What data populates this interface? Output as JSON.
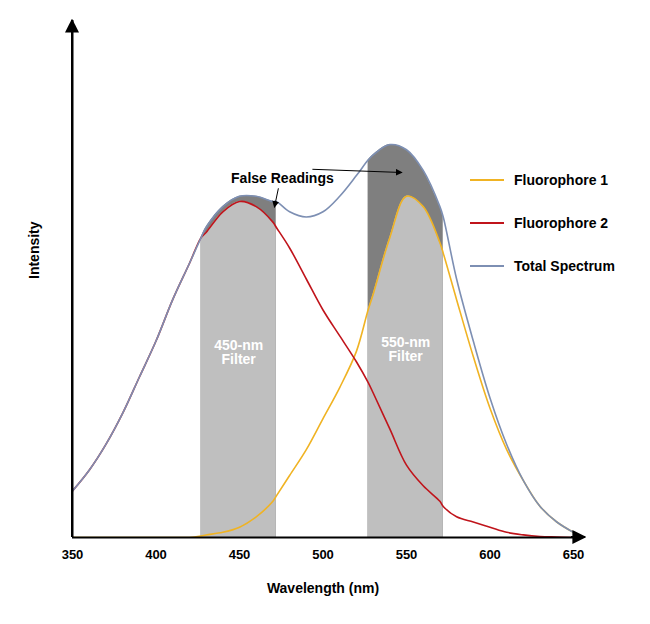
{
  "chart_data": {
    "type": "line",
    "xlabel": "Wavelength (nm)",
    "ylabel": "Intensity",
    "x": [
      350,
      360,
      370,
      380,
      390,
      400,
      410,
      420,
      427,
      430,
      440,
      450,
      460,
      470,
      472,
      480,
      490,
      500,
      510,
      520,
      527,
      530,
      540,
      550,
      560,
      570,
      572,
      580,
      590,
      600,
      610,
      620,
      630,
      640,
      650
    ],
    "series": [
      {
        "name": "Fluorophore 1",
        "color": "#f0b323",
        "values": [
          0,
          0,
          0,
          0,
          0,
          0,
          0,
          0,
          0.3,
          0.5,
          1,
          2,
          4,
          7,
          8,
          12,
          17,
          23,
          29,
          36,
          44,
          47,
          58,
          66,
          64,
          57,
          55,
          46,
          35,
          25,
          17,
          11,
          6,
          3,
          1
        ]
      },
      {
        "name": "Fluorophore 2",
        "color": "#c0141b",
        "values": [
          9,
          13,
          18,
          24,
          31,
          38,
          46,
          53,
          58,
          59,
          63,
          65,
          64,
          61,
          60,
          56,
          50,
          44,
          39,
          34,
          30,
          28,
          21,
          14,
          10,
          7,
          6,
          4,
          3,
          2,
          1,
          0.5,
          0.2,
          0.1,
          0
        ]
      },
      {
        "name": "Total Spectrum",
        "color": "#7d8fb3",
        "values": [
          9,
          13,
          18,
          24,
          31,
          38,
          46,
          53,
          58,
          60,
          64,
          66,
          66,
          65,
          65,
          63,
          62,
          63,
          66,
          70,
          73,
          74,
          76,
          75,
          71,
          64,
          62,
          50,
          38,
          27,
          18,
          11,
          6,
          3,
          1
        ]
      }
    ],
    "xlim": [
      350,
      650
    ],
    "xticks": [
      350,
      400,
      450,
      500,
      550,
      600,
      650
    ],
    "ylim": [
      0,
      100
    ],
    "yticks": [],
    "tick_labels": "x",
    "legend": "right",
    "filters": [
      {
        "label": "450-nm Filter",
        "range": [
          427,
          472
        ],
        "series": "Fluorophore 2",
        "color": "#bfbfbf"
      },
      {
        "label": "550-nm Filter",
        "range": [
          527,
          572
        ],
        "series": "Fluorophore 1",
        "color": "#bfbfbf"
      }
    ],
    "false_readings": {
      "label": "False Readings",
      "series": "Total Spectrum",
      "color": "#7f7f7f"
    }
  }
}
